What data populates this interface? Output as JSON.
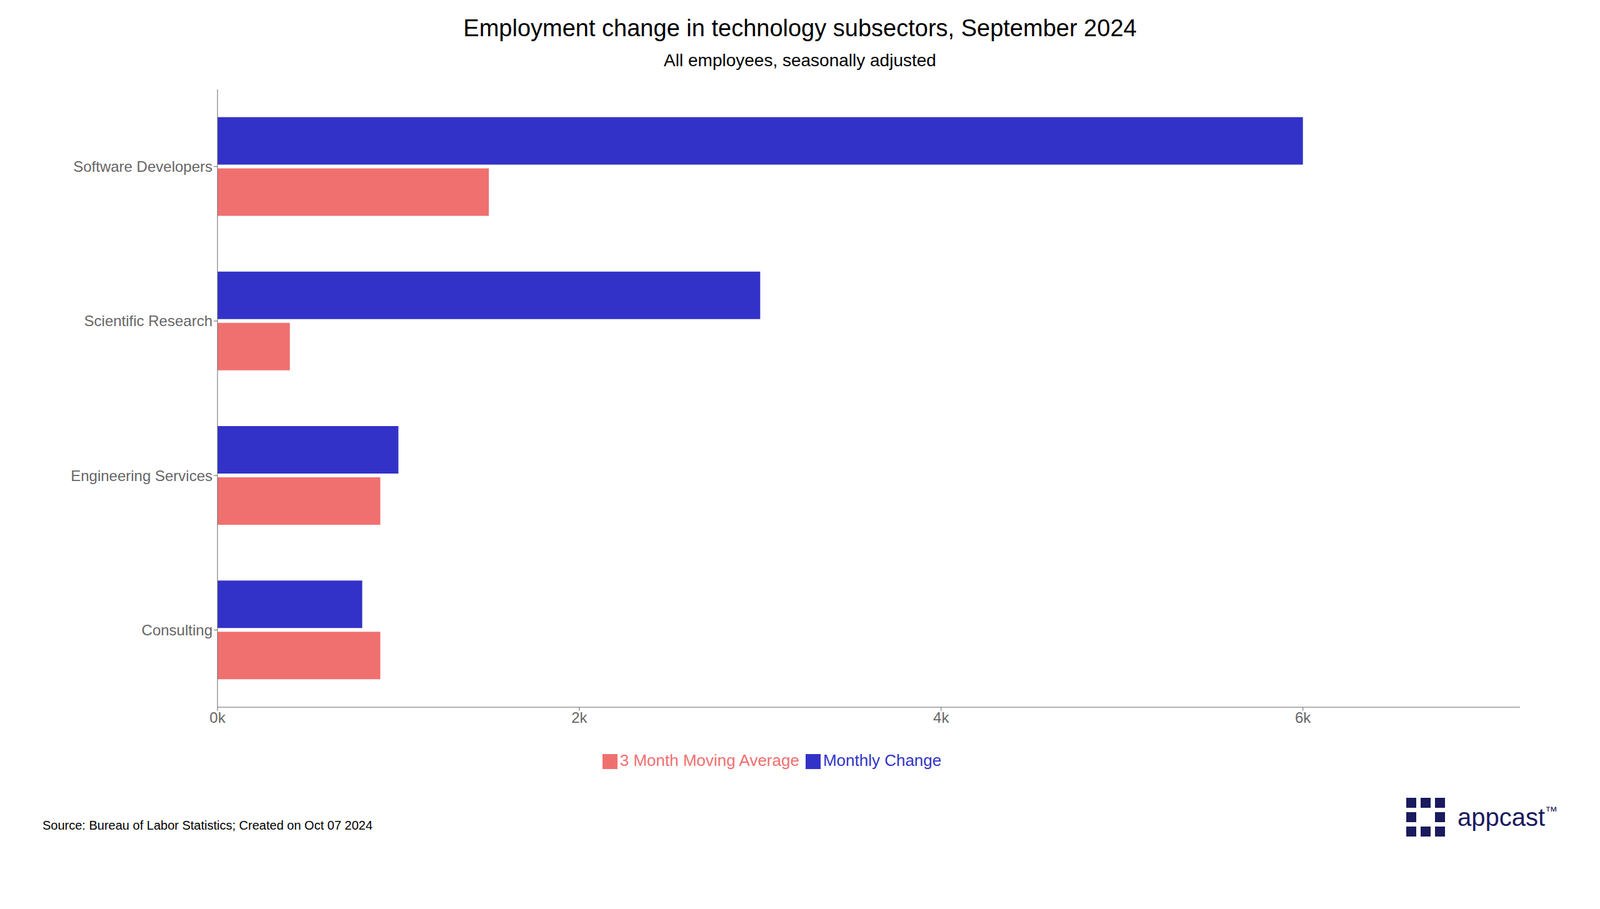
{
  "chart_data": {
    "type": "bar",
    "orientation": "horizontal",
    "title": "Employment change in technology subsectors, September 2024",
    "subtitle": "All employees, seasonally adjusted",
    "categories": [
      "Software Developers",
      "Scientific Research",
      "Engineering Services",
      "Consulting"
    ],
    "series": [
      {
        "name": "Monthly Change",
        "color": "#3232c8",
        "values": [
          6000,
          3000,
          1000,
          800
        ]
      },
      {
        "name": "3 Month Moving Average",
        "color": "#f07070",
        "values": [
          1500,
          400,
          900,
          900
        ]
      }
    ],
    "xlim": [
      0,
      7200
    ],
    "xticks": [
      {
        "value": 0,
        "label": "0k"
      },
      {
        "value": 2000,
        "label": "2k"
      },
      {
        "value": 4000,
        "label": "4k"
      },
      {
        "value": 6000,
        "label": "6k"
      }
    ],
    "grid": false,
    "legend": "bottom",
    "annotations": [
      {
        "text": "Source: Bureau of Labor Statistics; Created on Oct 07 2024"
      },
      {
        "text": "appcast",
        "color": "#1a1a5e"
      },
      {
        "text": "™",
        "color": "#1a1a5e"
      }
    ]
  }
}
